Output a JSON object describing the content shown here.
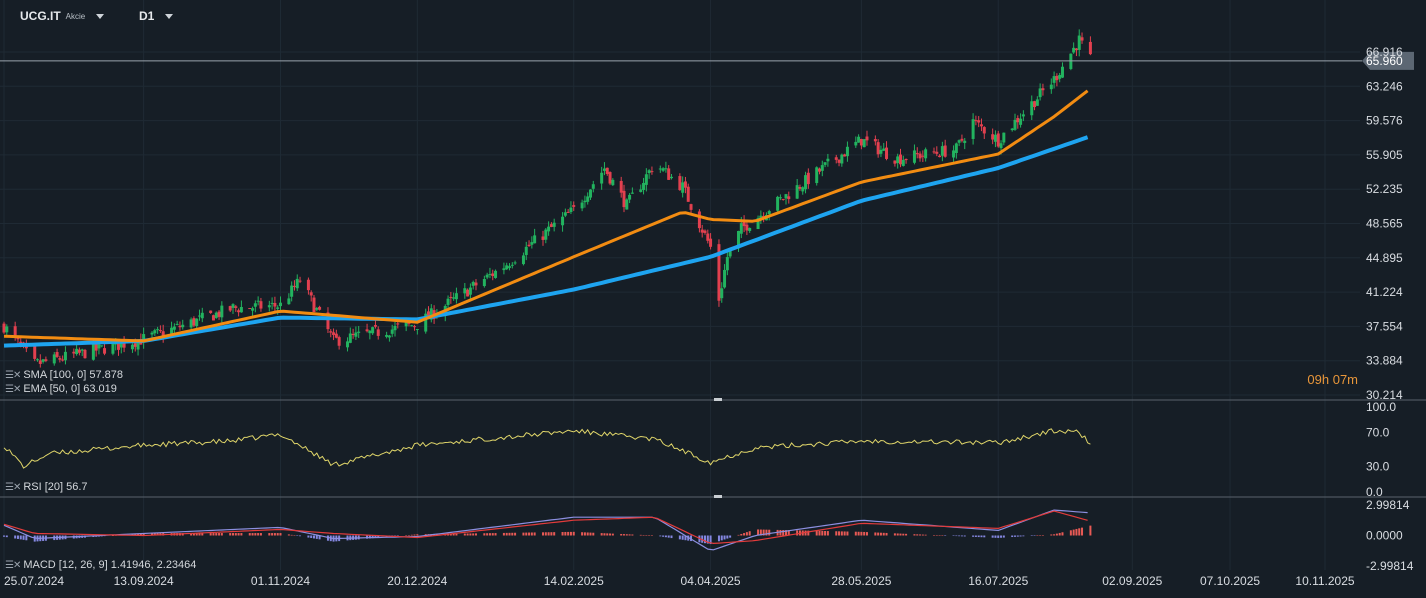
{
  "header": {
    "symbol": "UCG.IT",
    "asset_type": "Akcie",
    "timeframe": "D1"
  },
  "legends": {
    "sma": "SMA [100, 0] 57.878",
    "ema": "EMA [50, 0] 63.019",
    "rsi": "RSI [20] 56.7",
    "macd": "MACD [12, 26, 9] 1.41946, 2.23464"
  },
  "timer": "09h 07m",
  "colors": {
    "background": "#161e26",
    "bull": "#22b35f",
    "bear": "#e2404f",
    "sma": "#1ea4f0",
    "ema": "#f28c12",
    "rsi": "#e0d66a",
    "macd_line": "#8c8fe0",
    "signal_line": "#e23b3b",
    "hist_pos": "#e85a55",
    "hist_neg": "#8487e0"
  },
  "chart_data": {
    "type": "candlestick",
    "price_axis_ticks": [
      "66.916",
      "63.246",
      "59.576",
      "55.905",
      "52.235",
      "48.565",
      "44.895",
      "41.224",
      "37.554",
      "33.884",
      "30.214"
    ],
    "current_price": "65.960",
    "x_axis_labels": [
      "25.07.2024",
      "13.09.2024",
      "01.11.2024",
      "20.12.2024",
      "14.02.2025",
      "04.04.2025",
      "28.05.2025",
      "16.07.2025",
      "02.09.2025",
      "07.10.2025",
      "10.11.2025"
    ],
    "anchors": [
      {
        "date": "25.07.2024",
        "price": 37.6
      },
      {
        "date": "05.08.2024",
        "price": 33.5
      },
      {
        "date": "13.09.2024",
        "price": 36.2
      },
      {
        "date": "15.10.2024",
        "price": 39.5
      },
      {
        "date": "01.11.2024",
        "price": 39.8
      },
      {
        "date": "08.11.2024",
        "price": 42.5
      },
      {
        "date": "20.11.2024",
        "price": 36.0
      },
      {
        "date": "20.12.2024",
        "price": 37.8
      },
      {
        "date": "20.01.2025",
        "price": 44.0
      },
      {
        "date": "14.02.2025",
        "price": 50.0
      },
      {
        "date": "25.02.2025",
        "price": 54.5
      },
      {
        "date": "05.03.2025",
        "price": 50.5
      },
      {
        "date": "15.03.2025",
        "price": 55.0
      },
      {
        "date": "25.03.2025",
        "price": 52.5
      },
      {
        "date": "04.04.2025",
        "price": 46.0
      },
      {
        "date": "07.04.2025",
        "price": 40.5
      },
      {
        "date": "10.04.2025",
        "price": 45.0
      },
      {
        "date": "15.04.2025",
        "price": 48.0
      },
      {
        "date": "28.05.2025",
        "price": 57.5
      },
      {
        "date": "10.06.2025",
        "price": 55.5
      },
      {
        "date": "01.07.2025",
        "price": 56.5
      },
      {
        "date": "07.07.2025",
        "price": 59.5
      },
      {
        "date": "16.07.2025",
        "price": 57.5
      },
      {
        "date": "05.08.2025",
        "price": 64.0
      },
      {
        "date": "14.08.2025",
        "price": 68.2
      },
      {
        "date": "18.08.2025",
        "price": 66.0
      }
    ],
    "ema_50": [
      {
        "date": "25.07.2024",
        "value": 36.5
      },
      {
        "date": "13.09.2024",
        "value": 36.0
      },
      {
        "date": "01.11.2024",
        "value": 39.2
      },
      {
        "date": "20.12.2024",
        "value": 38.0
      },
      {
        "date": "14.02.2025",
        "value": 45.0
      },
      {
        "date": "25.03.2025",
        "value": 49.8
      },
      {
        "date": "04.04.2025",
        "value": 49.0
      },
      {
        "date": "20.04.2025",
        "value": 48.8
      },
      {
        "date": "28.05.2025",
        "value": 53.0
      },
      {
        "date": "16.07.2025",
        "value": 56.0
      },
      {
        "date": "05.08.2025",
        "value": 60.0
      },
      {
        "date": "18.08.2025",
        "value": 63.0
      }
    ],
    "sma_100": [
      {
        "date": "25.07.2024",
        "value": 35.5
      },
      {
        "date": "13.09.2024",
        "value": 36.0
      },
      {
        "date": "01.11.2024",
        "value": 38.5
      },
      {
        "date": "20.12.2024",
        "value": 38.3
      },
      {
        "date": "14.02.2025",
        "value": 41.5
      },
      {
        "date": "04.04.2025",
        "value": 45.0
      },
      {
        "date": "28.05.2025",
        "value": 51.0
      },
      {
        "date": "16.07.2025",
        "value": 54.5
      },
      {
        "date": "18.08.2025",
        "value": 57.9
      }
    ],
    "rsi": {
      "ticks": [
        "100.0",
        "70.0",
        "30.0",
        "0.0"
      ],
      "ylim": [
        0,
        100
      ],
      "anchors": [
        {
          "date": "25.07.2024",
          "value": 55
        },
        {
          "date": "01.08.2024",
          "value": 30
        },
        {
          "date": "10.08.2024",
          "value": 45
        },
        {
          "date": "13.09.2024",
          "value": 55
        },
        {
          "date": "15.10.2024",
          "value": 60
        },
        {
          "date": "01.11.2024",
          "value": 68
        },
        {
          "date": "20.11.2024",
          "value": 32
        },
        {
          "date": "20.12.2024",
          "value": 55
        },
        {
          "date": "14.02.2025",
          "value": 72
        },
        {
          "date": "15.03.2025",
          "value": 62
        },
        {
          "date": "04.04.2025",
          "value": 35
        },
        {
          "date": "20.04.2025",
          "value": 52
        },
        {
          "date": "28.05.2025",
          "value": 60
        },
        {
          "date": "16.07.2025",
          "value": 58
        },
        {
          "date": "05.08.2025",
          "value": 72
        },
        {
          "date": "14.08.2025",
          "value": 70
        },
        {
          "date": "18.08.2025",
          "value": 56.7
        }
      ]
    },
    "macd": {
      "ticks": [
        "2.99814",
        "0.0000",
        "-2.99814"
      ],
      "ylim": [
        -2.99814,
        2.99814
      ],
      "macd_line": [
        {
          "date": "25.07.2024",
          "value": 1.0
        },
        {
          "date": "05.08.2024",
          "value": -0.3
        },
        {
          "date": "13.09.2024",
          "value": 0.2
        },
        {
          "date": "01.11.2024",
          "value": 0.8
        },
        {
          "date": "20.11.2024",
          "value": -0.3
        },
        {
          "date": "20.12.2024",
          "value": -0.1
        },
        {
          "date": "14.02.2025",
          "value": 1.8
        },
        {
          "date": "15.03.2025",
          "value": 1.8
        },
        {
          "date": "04.04.2025",
          "value": -1.5
        },
        {
          "date": "20.04.2025",
          "value": 0.0
        },
        {
          "date": "28.05.2025",
          "value": 1.5
        },
        {
          "date": "16.07.2025",
          "value": 0.5
        },
        {
          "date": "05.08.2025",
          "value": 2.5
        },
        {
          "date": "18.08.2025",
          "value": 2.23
        }
      ],
      "signal_line": [
        {
          "date": "25.07.2024",
          "value": 1.1
        },
        {
          "date": "05.08.2024",
          "value": 0.2
        },
        {
          "date": "13.09.2024",
          "value": 0.0
        },
        {
          "date": "01.11.2024",
          "value": 0.6
        },
        {
          "date": "20.11.2024",
          "value": 0.2
        },
        {
          "date": "20.12.2024",
          "value": -0.2
        },
        {
          "date": "14.02.2025",
          "value": 1.5
        },
        {
          "date": "15.03.2025",
          "value": 1.8
        },
        {
          "date": "04.04.2025",
          "value": -0.8
        },
        {
          "date": "20.04.2025",
          "value": -0.5
        },
        {
          "date": "28.05.2025",
          "value": 1.2
        },
        {
          "date": "16.07.2025",
          "value": 0.7
        },
        {
          "date": "05.08.2025",
          "value": 2.4
        },
        {
          "date": "18.08.2025",
          "value": 1.42
        }
      ]
    }
  }
}
